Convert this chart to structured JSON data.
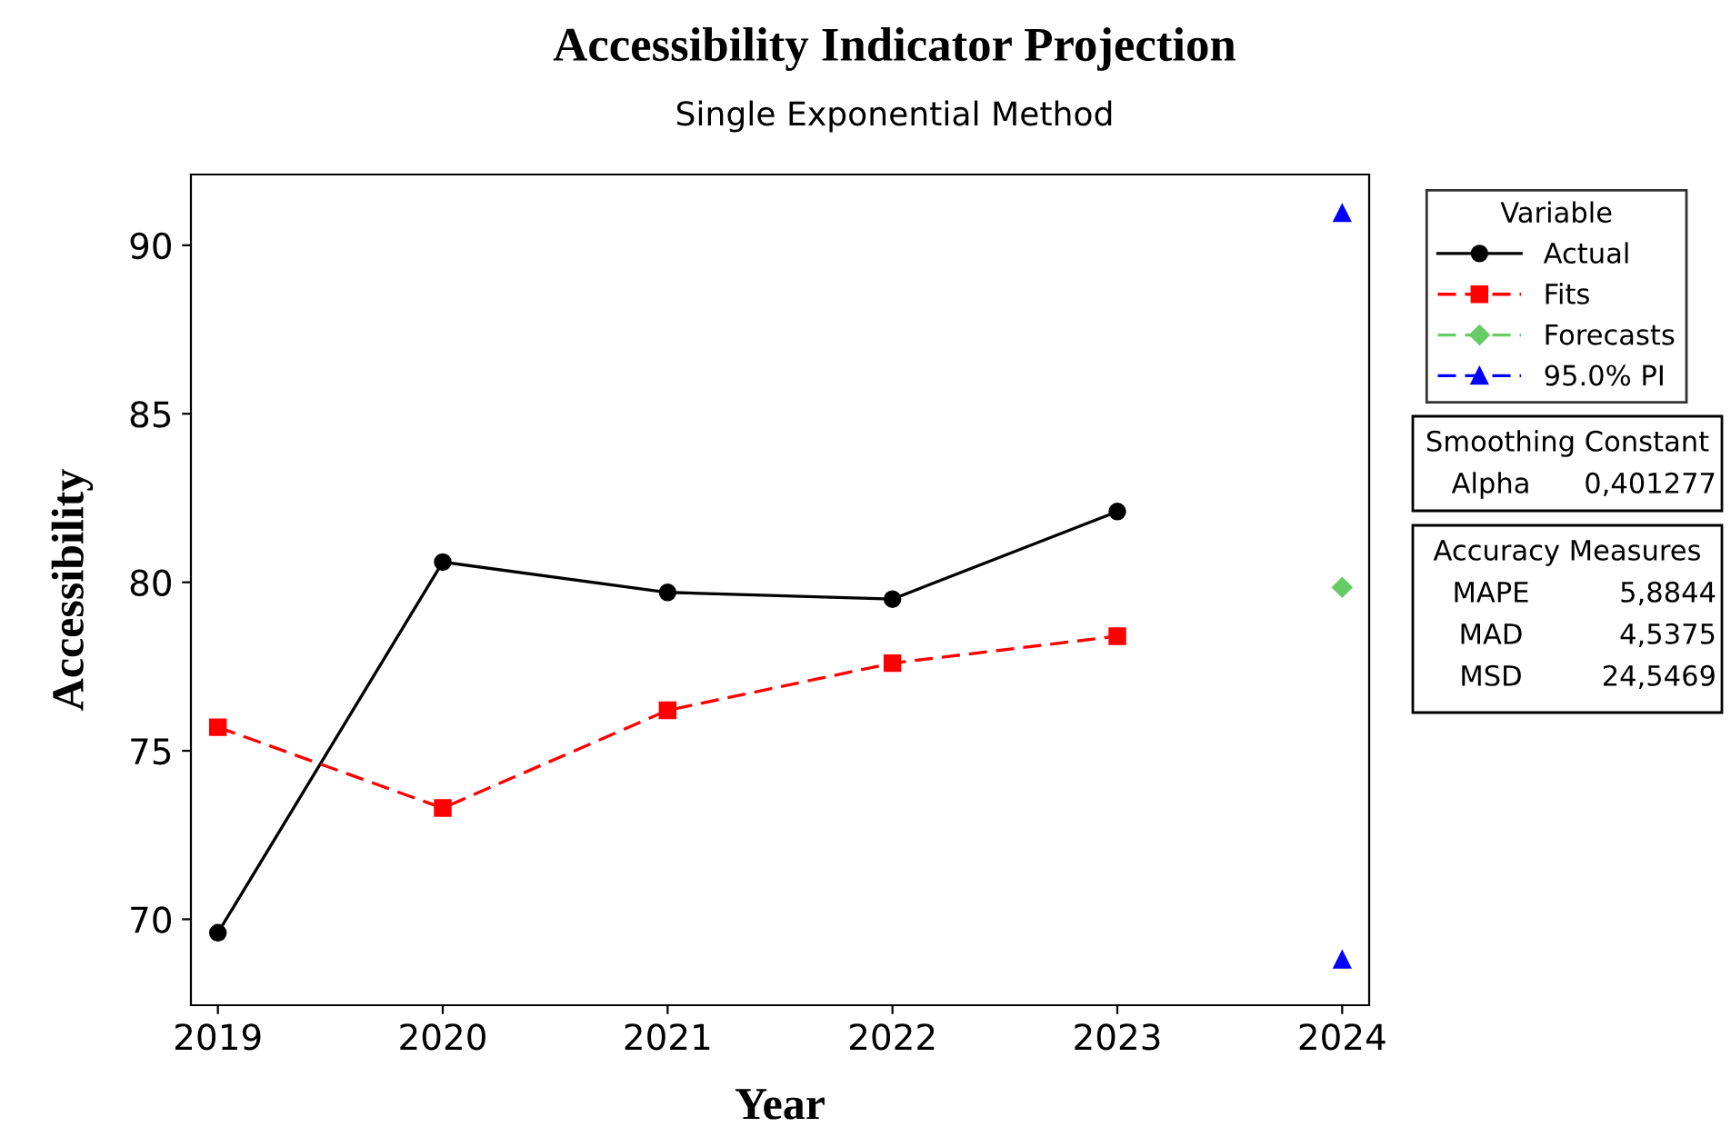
{
  "chart_data": {
    "type": "line",
    "title": "Accessibility Indicator Projection",
    "subtitle": "Single Exponential Method",
    "xlabel": "Year",
    "ylabel": "Accessibility",
    "xlim": [
      2018.88,
      2024.12
    ],
    "xticks": [
      2019,
      2020,
      2021,
      2022,
      2023,
      2024
    ],
    "ylim": [
      67.45,
      92.1
    ],
    "yticks": [
      70,
      75,
      80,
      85,
      90
    ],
    "series": [
      {
        "name": "Actual",
        "color": "#000000",
        "x": [
          2019,
          2020,
          2021,
          2022,
          2023
        ],
        "values": [
          69.6,
          80.6,
          79.7,
          79.5,
          82.1
        ],
        "marker": "circle",
        "line_style": "solid"
      },
      {
        "name": "Fits",
        "color": "#ff0000",
        "x": [
          2019,
          2020,
          2021,
          2022,
          2023
        ],
        "values": [
          75.7,
          73.3,
          76.2,
          77.6,
          78.4
        ],
        "marker": "square",
        "line_style": "dashed"
      },
      {
        "name": "Forecasts",
        "color": "#66cc66",
        "x": [
          2024
        ],
        "values": [
          79.85
        ],
        "marker": "diamond",
        "line_style": "dashed"
      },
      {
        "name": "95.0% PI",
        "color": "#0000ff",
        "x": [
          2024
        ],
        "values": [
          90.95
        ],
        "marker": "triangle",
        "line_style": "dashed"
      },
      {
        "color": "#0000ff",
        "x": [
          2024
        ],
        "values": [
          68.8
        ],
        "marker": "triangle",
        "line_style": "dashed"
      }
    ],
    "legend": "right",
    "legend_title": "Variable",
    "grid": false,
    "annotations": [
      "Smoothing Constant",
      "Alpha",
      "0,401277",
      "Accuracy Measures",
      "MAPE",
      "5,8844",
      "MAD",
      "4,5375",
      "MSD",
      "24,5469"
    ]
  }
}
